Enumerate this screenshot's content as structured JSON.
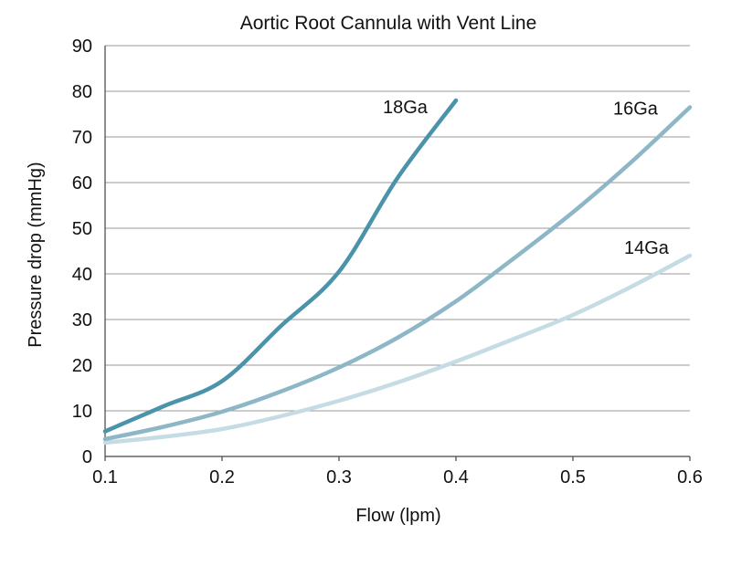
{
  "chart_data": {
    "type": "line",
    "title": "Aortic Root Cannula with Vent Line",
    "xlabel": "Flow (lpm)",
    "ylabel": "Pressure drop (mmHg)",
    "xlim": [
      0.1,
      0.6
    ],
    "ylim": [
      0,
      90
    ],
    "x_ticks": [
      "0.1",
      "0.2",
      "0.3",
      "0.4",
      "0.5",
      "0.6"
    ],
    "y_ticks": [
      "0",
      "10",
      "20",
      "30",
      "40",
      "50",
      "60",
      "70",
      "80",
      "90"
    ],
    "grid": "horizontal",
    "series": [
      {
        "name": "18Ga",
        "color": "#4a93aa",
        "x": [
          0.1,
          0.15,
          0.2,
          0.25,
          0.3,
          0.35,
          0.4
        ],
        "y": [
          5.5,
          11,
          16.5,
          28.5,
          40.5,
          61,
          78
        ]
      },
      {
        "name": "16Ga",
        "color": "#8db7c7",
        "x": [
          0.1,
          0.15,
          0.2,
          0.25,
          0.3,
          0.35,
          0.4,
          0.45,
          0.5,
          0.55,
          0.6
        ],
        "y": [
          3.8,
          6.5,
          9.8,
          14.2,
          19.5,
          26,
          34,
          43.5,
          53.5,
          64.5,
          76.5
        ]
      },
      {
        "name": "14Ga",
        "color": "#c5dce5",
        "x": [
          0.1,
          0.15,
          0.2,
          0.25,
          0.3,
          0.35,
          0.4,
          0.45,
          0.5,
          0.55,
          0.6
        ],
        "y": [
          3,
          4.3,
          6,
          8.8,
          12.2,
          16.2,
          20.8,
          25.8,
          31,
          37.2,
          44
        ]
      }
    ]
  }
}
